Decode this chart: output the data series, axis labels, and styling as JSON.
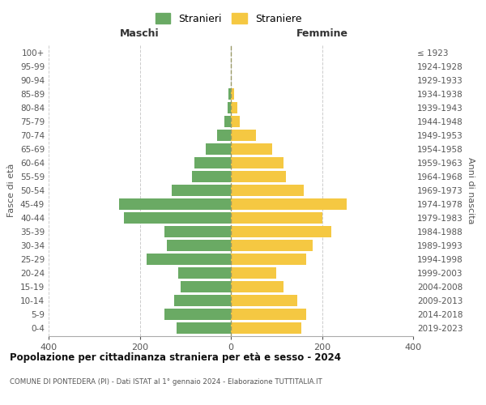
{
  "age_groups": [
    "0-4",
    "5-9",
    "10-14",
    "15-19",
    "20-24",
    "25-29",
    "30-34",
    "35-39",
    "40-44",
    "45-49",
    "50-54",
    "55-59",
    "60-64",
    "65-69",
    "70-74",
    "75-79",
    "80-84",
    "85-89",
    "90-94",
    "95-99",
    "100+"
  ],
  "birth_years": [
    "2019-2023",
    "2014-2018",
    "2009-2013",
    "2004-2008",
    "1999-2003",
    "1994-1998",
    "1989-1993",
    "1984-1988",
    "1979-1983",
    "1974-1978",
    "1969-1973",
    "1964-1968",
    "1959-1963",
    "1954-1958",
    "1949-1953",
    "1944-1948",
    "1939-1943",
    "1934-1938",
    "1929-1933",
    "1924-1928",
    "≤ 1923"
  ],
  "maschi": [
    120,
    145,
    125,
    110,
    115,
    185,
    140,
    145,
    235,
    245,
    130,
    85,
    80,
    55,
    30,
    14,
    8,
    5,
    0,
    0,
    0
  ],
  "femmine": [
    155,
    165,
    145,
    115,
    100,
    165,
    180,
    220,
    200,
    255,
    160,
    120,
    115,
    90,
    55,
    20,
    15,
    7,
    0,
    0,
    0
  ],
  "color_maschi": "#6aaa64",
  "color_femmine": "#f5c842",
  "title": "Popolazione per cittadinanza straniera per età e sesso - 2024",
  "subtitle": "COMUNE DI PONTEDERA (PI) - Dati ISTAT al 1° gennaio 2024 - Elaborazione TUTTITALIA.IT",
  "xlabel_left": "Maschi",
  "xlabel_right": "Femmine",
  "ylabel_left": "Fasce di età",
  "ylabel_right": "Anni di nascita",
  "legend_maschi": "Stranieri",
  "legend_femmine": "Straniere",
  "xlim": 400,
  "background_color": "#ffffff",
  "grid_color": "#cccccc",
  "bar_height": 0.82
}
